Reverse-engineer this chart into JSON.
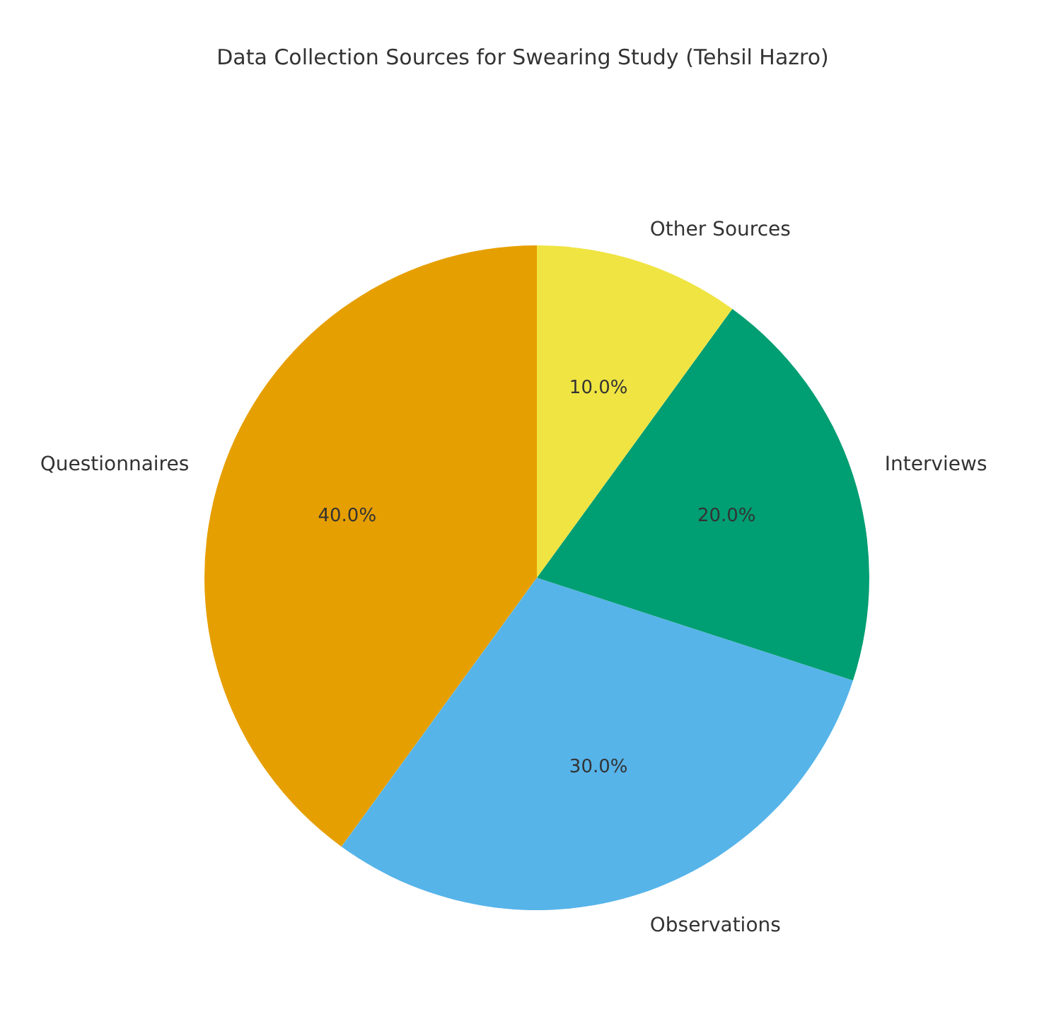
{
  "chart_data": {
    "type": "pie",
    "title": "Data Collection Sources for Swearing Study (Tehsil Hazro)",
    "categories": [
      "Questionnaires",
      "Observations",
      "Interviews",
      "Other Sources"
    ],
    "values": [
      40,
      30,
      20,
      10
    ],
    "colors": [
      "#e69f00",
      "#56b4e9",
      "#009e73",
      "#f0e442"
    ],
    "value_labels": [
      "40.0%",
      "30.0%",
      "20.0%",
      "10.0%"
    ]
  }
}
